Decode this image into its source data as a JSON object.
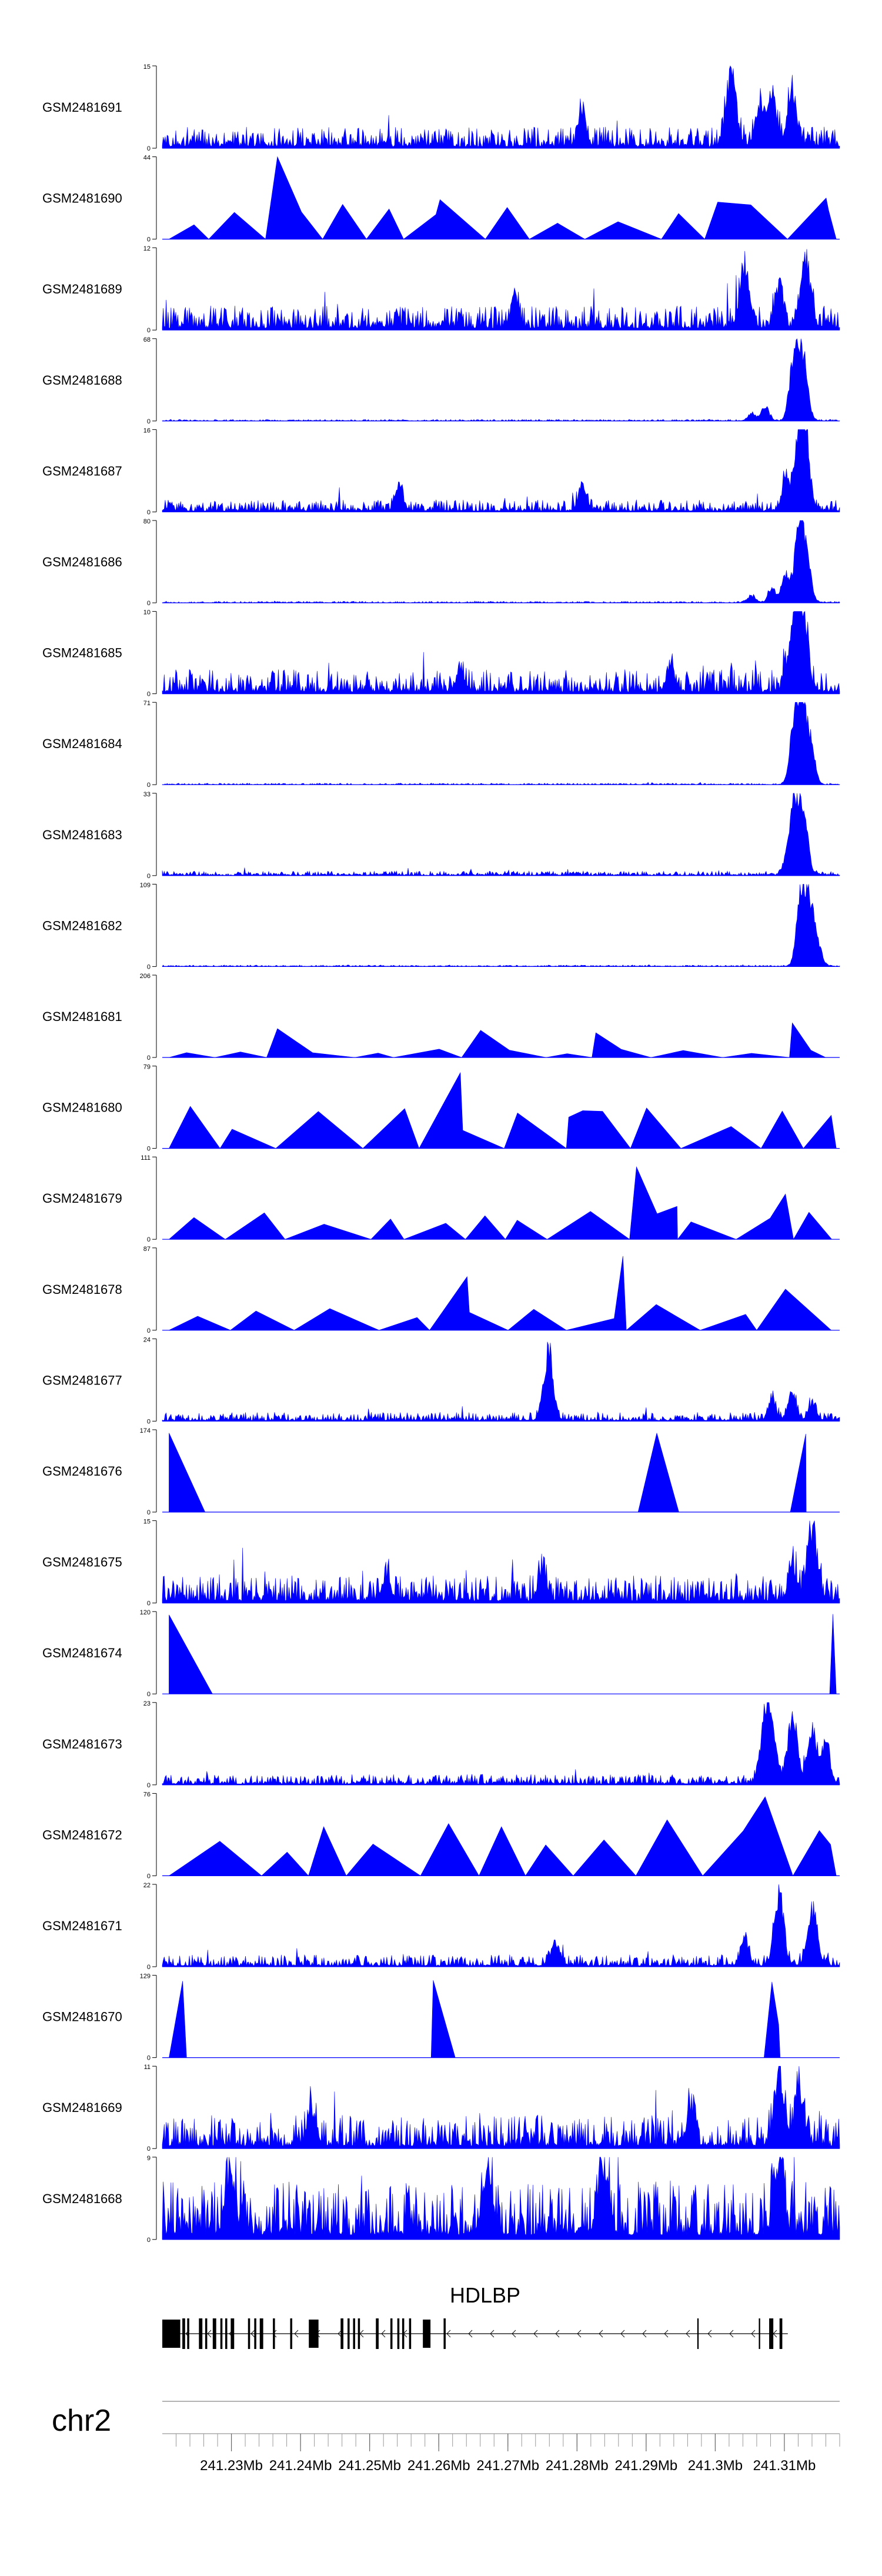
{
  "chart_data": {
    "type": "area",
    "chromosome": "chr2",
    "xlim": [
      241220000,
      241318000
    ],
    "fill_color": "#0000ff",
    "gene": {
      "name": "HDLBP",
      "strand": "-",
      "start": 241220000,
      "end": 241310500,
      "exons": [
        [
          241220000,
          241222600
        ],
        [
          241222900,
          241223300
        ],
        [
          241223600,
          241223900
        ],
        [
          241225300,
          241225800
        ],
        [
          241226200,
          241226500
        ],
        [
          241227300,
          241227800
        ],
        [
          241228400,
          241228700
        ],
        [
          241229100,
          241229400
        ],
        [
          241229900,
          241230400
        ],
        [
          241232400,
          241232700
        ],
        [
          241233300,
          241233600
        ],
        [
          241234100,
          241234600
        ],
        [
          241236000,
          241236300
        ],
        [
          241238500,
          241238800
        ],
        [
          241241200,
          241242600
        ],
        [
          241245800,
          241246200
        ],
        [
          241246800,
          241247100
        ],
        [
          241247600,
          241247900
        ],
        [
          241248300,
          241248600
        ],
        [
          241250900,
          241251300
        ],
        [
          241253000,
          241253300
        ],
        [
          241254000,
          241254300
        ],
        [
          241254700,
          241255000
        ],
        [
          241255700,
          241256000
        ],
        [
          241257700,
          241258800
        ],
        [
          241260700,
          241261000
        ],
        [
          241297400,
          241297600
        ],
        [
          241306300,
          241306500
        ],
        [
          241307800,
          241308400
        ],
        [
          241309300,
          241309700
        ]
      ]
    },
    "x_ticks": [
      241230000,
      241240000,
      241250000,
      241260000,
      241270000,
      241280000,
      241290000,
      241300000,
      241310000
    ],
    "x_tick_labels": [
      "241.23Mb",
      "241.24Mb",
      "241.25Mb",
      "241.26Mb",
      "241.27Mb",
      "241.28Mb",
      "241.29Mb",
      "241.3Mb",
      "241.31Mb"
    ],
    "tracks": [
      {
        "name": "GSM2481691",
        "ymax": 15,
        "profile": "dense",
        "base": 0.14,
        "seed": 11,
        "peaks": [
          [
            0.84,
            1.0
          ],
          [
            0.9,
            0.7
          ],
          [
            0.93,
            0.72
          ],
          [
            0.88,
            0.55
          ],
          [
            0.62,
            0.45
          ]
        ]
      },
      {
        "name": "GSM2481690",
        "ymax": 44,
        "profile": "sparse",
        "base": 0.3,
        "seed": 12,
        "peaks": [
          [
            0.17,
            1.0
          ],
          [
            0.41,
            0.48
          ],
          [
            0.82,
            0.45
          ],
          [
            0.98,
            0.5
          ]
        ]
      },
      {
        "name": "GSM2481689",
        "ymax": 12,
        "profile": "dense",
        "base": 0.16,
        "seed": 13,
        "peaks": [
          [
            0.95,
            1.0
          ],
          [
            0.86,
            0.8
          ],
          [
            0.91,
            0.6
          ],
          [
            0.52,
            0.45
          ]
        ]
      },
      {
        "name": "GSM2481688",
        "ymax": 68,
        "profile": "dense",
        "base": 0.01,
        "seed": 14,
        "peaks": [
          [
            0.94,
            1.0
          ],
          [
            0.93,
            0.55
          ],
          [
            0.95,
            0.4
          ],
          [
            0.89,
            0.2
          ],
          [
            0.87,
            0.1
          ]
        ]
      },
      {
        "name": "GSM2481687",
        "ymax": 16,
        "profile": "dense",
        "base": 0.08,
        "seed": 15,
        "peaks": [
          [
            0.94,
            1.0
          ],
          [
            0.95,
            0.75
          ],
          [
            0.92,
            0.45
          ],
          [
            0.35,
            0.35
          ],
          [
            0.62,
            0.35
          ]
        ]
      },
      {
        "name": "GSM2481686",
        "ymax": 80,
        "profile": "dense",
        "base": 0.01,
        "seed": 16,
        "peaks": [
          [
            0.94,
            0.95
          ],
          [
            0.95,
            0.62
          ],
          [
            0.92,
            0.4
          ],
          [
            0.9,
            0.2
          ],
          [
            0.87,
            0.1
          ]
        ]
      },
      {
        "name": "GSM2481685",
        "ymax": 10,
        "profile": "dense",
        "base": 0.16,
        "seed": 17,
        "peaks": [
          [
            0.94,
            1.0
          ],
          [
            0.93,
            0.7
          ],
          [
            0.95,
            0.55
          ],
          [
            0.75,
            0.4
          ],
          [
            0.44,
            0.35
          ]
        ]
      },
      {
        "name": "GSM2481684",
        "ymax": 71,
        "profile": "dense",
        "base": 0.01,
        "seed": 18,
        "peaks": [
          [
            0.94,
            1.0
          ],
          [
            0.95,
            0.7
          ],
          [
            0.93,
            0.45
          ],
          [
            0.96,
            0.25
          ]
        ]
      },
      {
        "name": "GSM2481683",
        "ymax": 33,
        "profile": "dense",
        "base": 0.03,
        "seed": 19,
        "peaks": [
          [
            0.94,
            1.0
          ],
          [
            0.93,
            0.6
          ],
          [
            0.95,
            0.4
          ],
          [
            0.92,
            0.15
          ]
        ]
      },
      {
        "name": "GSM2481682",
        "ymax": 109,
        "profile": "dense",
        "base": 0.01,
        "seed": 20,
        "peaks": [
          [
            0.95,
            1.0
          ],
          [
            0.94,
            0.55
          ],
          [
            0.96,
            0.45
          ],
          [
            0.97,
            0.2
          ]
        ]
      },
      {
        "name": "GSM2481681",
        "ymax": 206,
        "profile": "sparse",
        "base": 0.08,
        "seed": 21,
        "peaks": [
          [
            0.17,
            0.35
          ],
          [
            0.47,
            0.33
          ],
          [
            0.93,
            0.42
          ],
          [
            0.64,
            0.3
          ]
        ]
      },
      {
        "name": "GSM2481680",
        "ymax": 79,
        "profile": "sparse",
        "base": 0.38,
        "seed": 22,
        "peaks": [
          [
            0.44,
            0.92
          ],
          [
            0.6,
            0.38
          ],
          [
            0.65,
            0.45
          ]
        ]
      },
      {
        "name": "GSM2481679",
        "ymax": 111,
        "profile": "sparse",
        "base": 0.25,
        "seed": 23,
        "peaks": [
          [
            0.7,
            0.88
          ],
          [
            0.92,
            0.55
          ],
          [
            0.76,
            0.4
          ]
        ]
      },
      {
        "name": "GSM2481678",
        "ymax": 87,
        "profile": "sparse",
        "base": 0.22,
        "seed": 24,
        "peaks": [
          [
            0.68,
            0.9
          ],
          [
            0.45,
            0.65
          ],
          [
            0.92,
            0.5
          ]
        ]
      },
      {
        "name": "GSM2481677",
        "ymax": 24,
        "profile": "dense",
        "base": 0.06,
        "seed": 25,
        "peaks": [
          [
            0.57,
            0.95
          ],
          [
            0.93,
            0.4
          ],
          [
            0.9,
            0.3
          ],
          [
            0.96,
            0.25
          ]
        ]
      },
      {
        "name": "GSM2481676",
        "ymax": 174,
        "profile": "sparse",
        "base": 0.0,
        "seed": 26,
        "peaks": [
          [
            0.01,
            0.96
          ],
          [
            0.73,
            0.96
          ],
          [
            0.95,
            0.95
          ]
        ]
      },
      {
        "name": "GSM2481675",
        "ymax": 15,
        "profile": "dense",
        "base": 0.18,
        "seed": 27,
        "peaks": [
          [
            0.96,
            1.0
          ],
          [
            0.93,
            0.55
          ],
          [
            0.56,
            0.45
          ],
          [
            0.33,
            0.35
          ]
        ]
      },
      {
        "name": "GSM2481674",
        "ymax": 120,
        "profile": "sparse",
        "base": 0.0,
        "seed": 28,
        "peaks": [
          [
            0.01,
            0.96
          ],
          [
            0.99,
            0.97
          ]
        ]
      },
      {
        "name": "GSM2481673",
        "ymax": 23,
        "profile": "dense",
        "base": 0.07,
        "seed": 29,
        "peaks": [
          [
            0.93,
            0.9
          ],
          [
            0.89,
            0.85
          ],
          [
            0.96,
            0.7
          ],
          [
            0.9,
            0.65
          ],
          [
            0.98,
            0.55
          ]
        ]
      },
      {
        "name": "GSM2481672",
        "ymax": 76,
        "profile": "sparse",
        "base": 0.48,
        "seed": 30,
        "peaks": [
          [
            0.89,
            0.96
          ],
          [
            0.97,
            0.55
          ]
        ]
      },
      {
        "name": "GSM2481671",
        "ymax": 22,
        "profile": "dense",
        "base": 0.08,
        "seed": 31,
        "peaks": [
          [
            0.91,
            0.98
          ],
          [
            0.96,
            0.75
          ],
          [
            0.86,
            0.4
          ],
          [
            0.58,
            0.35
          ]
        ]
      },
      {
        "name": "GSM2481670",
        "ymax": 129,
        "profile": "sparse",
        "base": 0.0,
        "seed": 32,
        "peaks": [
          [
            0.03,
            0.93
          ],
          [
            0.4,
            0.94
          ],
          [
            0.9,
            0.92
          ],
          [
            0.91,
            0.4
          ]
        ]
      },
      {
        "name": "GSM2481669",
        "ymax": 11,
        "profile": "dense",
        "base": 0.22,
        "seed": 33,
        "peaks": [
          [
            0.91,
            1.0
          ],
          [
            0.94,
            0.7
          ],
          [
            0.22,
            0.55
          ],
          [
            0.78,
            0.5
          ]
        ]
      },
      {
        "name": "GSM2481668",
        "ymax": 9,
        "profile": "dense",
        "base": 0.38,
        "seed": 34,
        "peaks": [
          [
            0.48,
            0.95
          ],
          [
            0.65,
            0.95
          ],
          [
            0.91,
            0.9
          ],
          [
            0.1,
            0.85
          ]
        ]
      }
    ]
  }
}
